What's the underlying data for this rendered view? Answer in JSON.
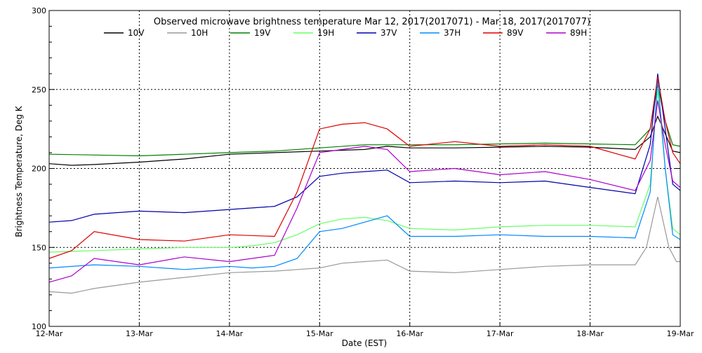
{
  "chart_data": {
    "type": "line",
    "title": "Observed microwave brightness temperature Mar 12, 2017(2017071) - Mar 18, 2017(2017077)",
    "xlabel": "Date (EST)",
    "ylabel": "Brightness Temperature, Deg K",
    "xlim": [
      "2017-03-12",
      "2017-03-19"
    ],
    "ylim": [
      100,
      300
    ],
    "x_ticks": [
      "12-Mar",
      "13-Mar",
      "14-Mar",
      "15-Mar",
      "16-Mar",
      "17-Mar",
      "18-Mar",
      "19-Mar"
    ],
    "y_ticks": [
      100,
      150,
      200,
      250,
      300
    ],
    "grid": "dotted",
    "legend": "top",
    "series": [
      {
        "name": "10V",
        "color": "#000000",
        "values": [
          [
            "2017-03-12T00:00",
            203
          ],
          [
            "2017-03-12T06:00",
            202
          ],
          [
            "2017-03-12T12:00",
            202.5
          ],
          [
            "2017-03-13T00:00",
            204
          ],
          [
            "2017-03-13T12:00",
            206
          ],
          [
            "2017-03-14T00:00",
            209
          ],
          [
            "2017-03-14T12:00",
            210
          ],
          [
            "2017-03-15T00:00",
            211
          ],
          [
            "2017-03-15T12:00",
            212
          ],
          [
            "2017-03-15T18:00",
            214
          ],
          [
            "2017-03-16T00:00",
            213
          ],
          [
            "2017-03-16T12:00",
            213
          ],
          [
            "2017-03-17T00:00",
            213.5
          ],
          [
            "2017-03-17T12:00",
            214
          ],
          [
            "2017-03-18T00:00",
            213.5
          ],
          [
            "2017-03-18T12:00",
            212
          ],
          [
            "2017-03-18T16:00",
            220
          ],
          [
            "2017-03-18T18:00",
            233
          ],
          [
            "2017-03-18T20:00",
            222
          ],
          [
            "2017-03-18T22:00",
            211
          ],
          [
            "2017-03-19T00:00",
            210
          ]
        ]
      },
      {
        "name": "10H",
        "color": "#999999",
        "values": [
          [
            "2017-03-12T00:00",
            122
          ],
          [
            "2017-03-12T06:00",
            121
          ],
          [
            "2017-03-12T12:00",
            124
          ],
          [
            "2017-03-13T00:00",
            128
          ],
          [
            "2017-03-13T12:00",
            131
          ],
          [
            "2017-03-14T00:00",
            134
          ],
          [
            "2017-03-14T12:00",
            135
          ],
          [
            "2017-03-14T18:00",
            136
          ],
          [
            "2017-03-15T00:00",
            137
          ],
          [
            "2017-03-15T06:00",
            140
          ],
          [
            "2017-03-15T12:00",
            141
          ],
          [
            "2017-03-15T18:00",
            142
          ],
          [
            "2017-03-16T00:00",
            135
          ],
          [
            "2017-03-16T12:00",
            134
          ],
          [
            "2017-03-17T00:00",
            136
          ],
          [
            "2017-03-17T12:00",
            138
          ],
          [
            "2017-03-18T00:00",
            139
          ],
          [
            "2017-03-18T12:00",
            139
          ],
          [
            "2017-03-18T15:00",
            150
          ],
          [
            "2017-03-18T18:00",
            182
          ],
          [
            "2017-03-18T21:00",
            150
          ],
          [
            "2017-03-18T23:00",
            141
          ],
          [
            "2017-03-19T00:00",
            141
          ]
        ]
      },
      {
        "name": "19V",
        "color": "#008000",
        "values": [
          [
            "2017-03-12T00:00",
            209
          ],
          [
            "2017-03-12T12:00",
            208.5
          ],
          [
            "2017-03-13T00:00",
            208
          ],
          [
            "2017-03-13T12:00",
            209
          ],
          [
            "2017-03-14T00:00",
            210
          ],
          [
            "2017-03-14T12:00",
            211
          ],
          [
            "2017-03-15T00:00",
            213
          ],
          [
            "2017-03-15T12:00",
            215
          ],
          [
            "2017-03-16T00:00",
            215
          ],
          [
            "2017-03-16T12:00",
            215
          ],
          [
            "2017-03-17T00:00",
            215.5
          ],
          [
            "2017-03-17T12:00",
            216
          ],
          [
            "2017-03-18T00:00",
            215.5
          ],
          [
            "2017-03-18T12:00",
            215
          ],
          [
            "2017-03-18T16:00",
            225
          ],
          [
            "2017-03-18T18:00",
            253
          ],
          [
            "2017-03-18T20:00",
            230
          ],
          [
            "2017-03-18T22:00",
            215
          ],
          [
            "2017-03-19T00:00",
            214
          ]
        ]
      },
      {
        "name": "19H",
        "color": "#66ff66",
        "values": [
          [
            "2017-03-12T00:00",
            147
          ],
          [
            "2017-03-12T12:00",
            148
          ],
          [
            "2017-03-13T00:00",
            149
          ],
          [
            "2017-03-13T12:00",
            150
          ],
          [
            "2017-03-14T00:00",
            150
          ],
          [
            "2017-03-14T06:00",
            151
          ],
          [
            "2017-03-14T12:00",
            153
          ],
          [
            "2017-03-14T18:00",
            158
          ],
          [
            "2017-03-15T00:00",
            165
          ],
          [
            "2017-03-15T06:00",
            168
          ],
          [
            "2017-03-15T12:00",
            169
          ],
          [
            "2017-03-15T18:00",
            167
          ],
          [
            "2017-03-16T00:00",
            162
          ],
          [
            "2017-03-16T12:00",
            161
          ],
          [
            "2017-03-17T00:00",
            163
          ],
          [
            "2017-03-17T12:00",
            164
          ],
          [
            "2017-03-18T00:00",
            164
          ],
          [
            "2017-03-18T12:00",
            163
          ],
          [
            "2017-03-18T16:00",
            190
          ],
          [
            "2017-03-18T18:00",
            250
          ],
          [
            "2017-03-18T20:00",
            200
          ],
          [
            "2017-03-18T22:00",
            162
          ],
          [
            "2017-03-19T00:00",
            158
          ]
        ]
      },
      {
        "name": "37V",
        "color": "#0000aa",
        "values": [
          [
            "2017-03-12T00:00",
            166
          ],
          [
            "2017-03-12T06:00",
            167
          ],
          [
            "2017-03-12T12:00",
            171
          ],
          [
            "2017-03-13T00:00",
            173
          ],
          [
            "2017-03-13T12:00",
            172
          ],
          [
            "2017-03-14T00:00",
            174
          ],
          [
            "2017-03-14T12:00",
            176
          ],
          [
            "2017-03-14T18:00",
            182
          ],
          [
            "2017-03-15T00:00",
            195
          ],
          [
            "2017-03-15T06:00",
            197
          ],
          [
            "2017-03-15T12:00",
            198
          ],
          [
            "2017-03-15T18:00",
            199
          ],
          [
            "2017-03-16T00:00",
            191
          ],
          [
            "2017-03-16T12:00",
            192
          ],
          [
            "2017-03-17T00:00",
            191
          ],
          [
            "2017-03-17T12:00",
            192
          ],
          [
            "2017-03-18T00:00",
            188
          ],
          [
            "2017-03-18T12:00",
            184
          ],
          [
            "2017-03-18T16:00",
            215
          ],
          [
            "2017-03-18T18:00",
            260
          ],
          [
            "2017-03-18T20:00",
            225
          ],
          [
            "2017-03-18T22:00",
            190
          ],
          [
            "2017-03-19T00:00",
            186
          ]
        ]
      },
      {
        "name": "37H",
        "color": "#0088ff",
        "values": [
          [
            "2017-03-12T00:00",
            137
          ],
          [
            "2017-03-12T12:00",
            139
          ],
          [
            "2017-03-13T00:00",
            138
          ],
          [
            "2017-03-13T12:00",
            136
          ],
          [
            "2017-03-14T00:00",
            138
          ],
          [
            "2017-03-14T06:00",
            137
          ],
          [
            "2017-03-14T12:00",
            138
          ],
          [
            "2017-03-14T18:00",
            143
          ],
          [
            "2017-03-15T00:00",
            160
          ],
          [
            "2017-03-15T06:00",
            162
          ],
          [
            "2017-03-15T12:00",
            166
          ],
          [
            "2017-03-15T18:00",
            170
          ],
          [
            "2017-03-16T00:00",
            157
          ],
          [
            "2017-03-16T12:00",
            157
          ],
          [
            "2017-03-17T00:00",
            158
          ],
          [
            "2017-03-17T12:00",
            157
          ],
          [
            "2017-03-18T00:00",
            157
          ],
          [
            "2017-03-18T12:00",
            156
          ],
          [
            "2017-03-18T16:00",
            185
          ],
          [
            "2017-03-18T18:00",
            257
          ],
          [
            "2017-03-18T20:00",
            200
          ],
          [
            "2017-03-18T22:00",
            158
          ],
          [
            "2017-03-19T00:00",
            155
          ]
        ]
      },
      {
        "name": "89V",
        "color": "#dd0000",
        "values": [
          [
            "2017-03-12T00:00",
            143
          ],
          [
            "2017-03-12T06:00",
            148
          ],
          [
            "2017-03-12T12:00",
            160
          ],
          [
            "2017-03-13T00:00",
            155
          ],
          [
            "2017-03-13T12:00",
            154
          ],
          [
            "2017-03-14T00:00",
            158
          ],
          [
            "2017-03-14T12:00",
            157
          ],
          [
            "2017-03-14T18:00",
            185
          ],
          [
            "2017-03-15T00:00",
            225
          ],
          [
            "2017-03-15T06:00",
            228
          ],
          [
            "2017-03-15T12:00",
            229
          ],
          [
            "2017-03-15T18:00",
            225
          ],
          [
            "2017-03-16T00:00",
            214
          ],
          [
            "2017-03-16T12:00",
            217
          ],
          [
            "2017-03-17T00:00",
            214
          ],
          [
            "2017-03-17T12:00",
            215
          ],
          [
            "2017-03-18T00:00",
            214
          ],
          [
            "2017-03-18T12:00",
            206
          ],
          [
            "2017-03-18T16:00",
            225
          ],
          [
            "2017-03-18T18:00",
            258
          ],
          [
            "2017-03-18T20:00",
            230
          ],
          [
            "2017-03-18T22:00",
            210
          ],
          [
            "2017-03-19T00:00",
            203
          ]
        ]
      },
      {
        "name": "89H",
        "color": "#aa00cc",
        "values": [
          [
            "2017-03-12T00:00",
            128
          ],
          [
            "2017-03-12T06:00",
            132
          ],
          [
            "2017-03-12T12:00",
            143
          ],
          [
            "2017-03-13T00:00",
            139
          ],
          [
            "2017-03-13T12:00",
            144
          ],
          [
            "2017-03-14T00:00",
            141
          ],
          [
            "2017-03-14T12:00",
            145
          ],
          [
            "2017-03-14T18:00",
            175
          ],
          [
            "2017-03-15T00:00",
            210
          ],
          [
            "2017-03-15T06:00",
            212
          ],
          [
            "2017-03-15T12:00",
            214
          ],
          [
            "2017-03-15T18:00",
            212
          ],
          [
            "2017-03-16T00:00",
            198
          ],
          [
            "2017-03-16T12:00",
            200
          ],
          [
            "2017-03-17T00:00",
            196
          ],
          [
            "2017-03-17T12:00",
            198
          ],
          [
            "2017-03-18T00:00",
            193
          ],
          [
            "2017-03-18T12:00",
            186
          ],
          [
            "2017-03-18T16:00",
            205
          ],
          [
            "2017-03-18T18:00",
            243
          ],
          [
            "2017-03-18T20:00",
            215
          ],
          [
            "2017-03-18T22:00",
            192
          ],
          [
            "2017-03-19T00:00",
            188
          ]
        ]
      }
    ]
  }
}
